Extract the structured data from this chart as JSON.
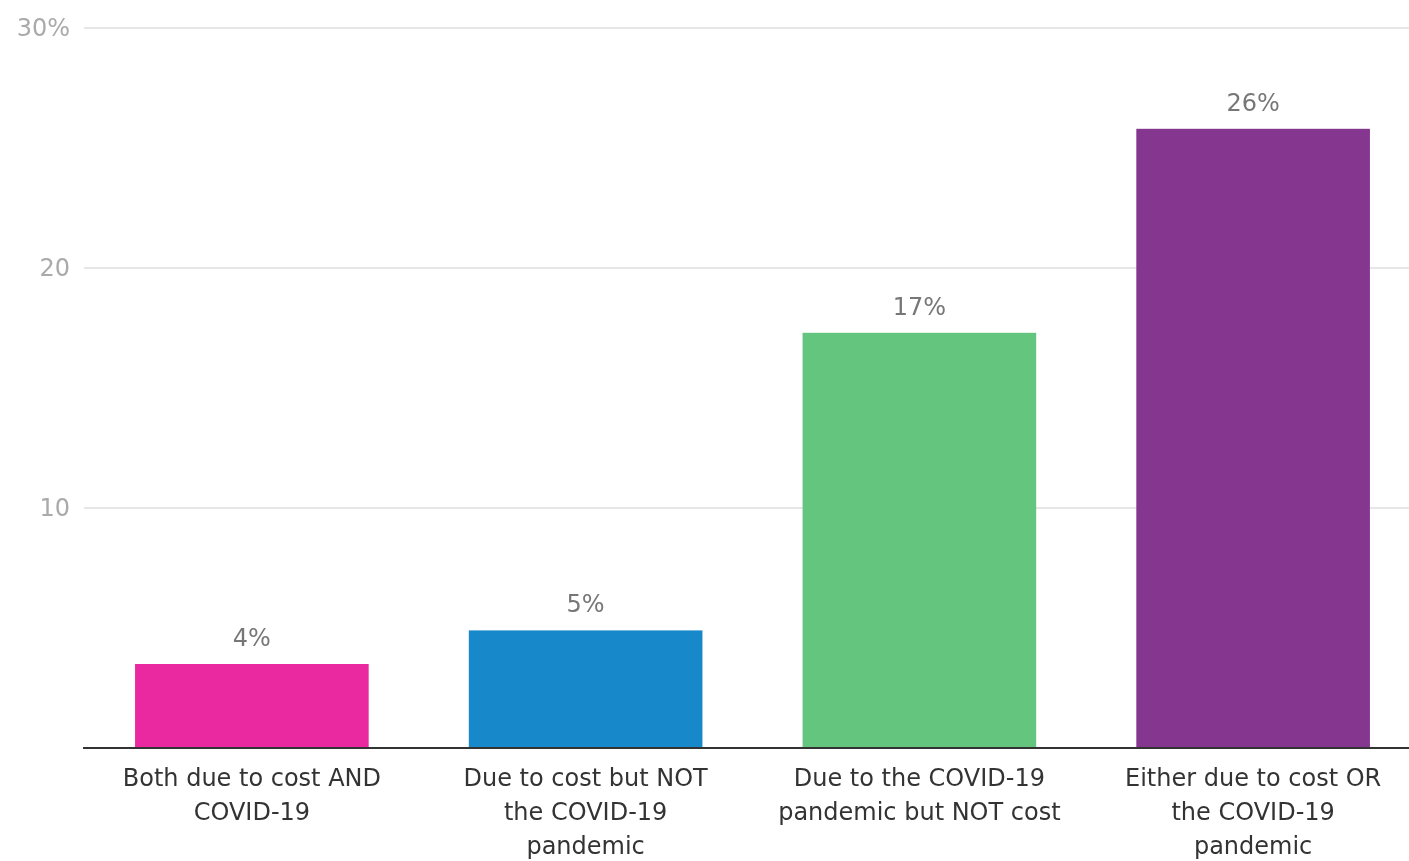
{
  "chart_data": {
    "type": "bar",
    "categories": [
      "Both due to cost AND COVID-19",
      "Due to cost but NOT the COVID-19 pandemic",
      "Due to the COVID-19 pandemic but NOT cost",
      "Either due to cost OR the COVID-19 pandemic"
    ],
    "values": [
      3.5,
      4.9,
      17.3,
      25.8
    ],
    "colors": [
      "#ea28a0",
      "#1789cb",
      "#64c57e",
      "#85378f"
    ],
    "value_labels": [
      "4%",
      "5%",
      "17%",
      "26%"
    ],
    "ylim": [
      0,
      30
    ],
    "yticks": [
      10,
      20,
      {
        "value": 30,
        "label": "30%"
      }
    ],
    "grid": "y"
  }
}
